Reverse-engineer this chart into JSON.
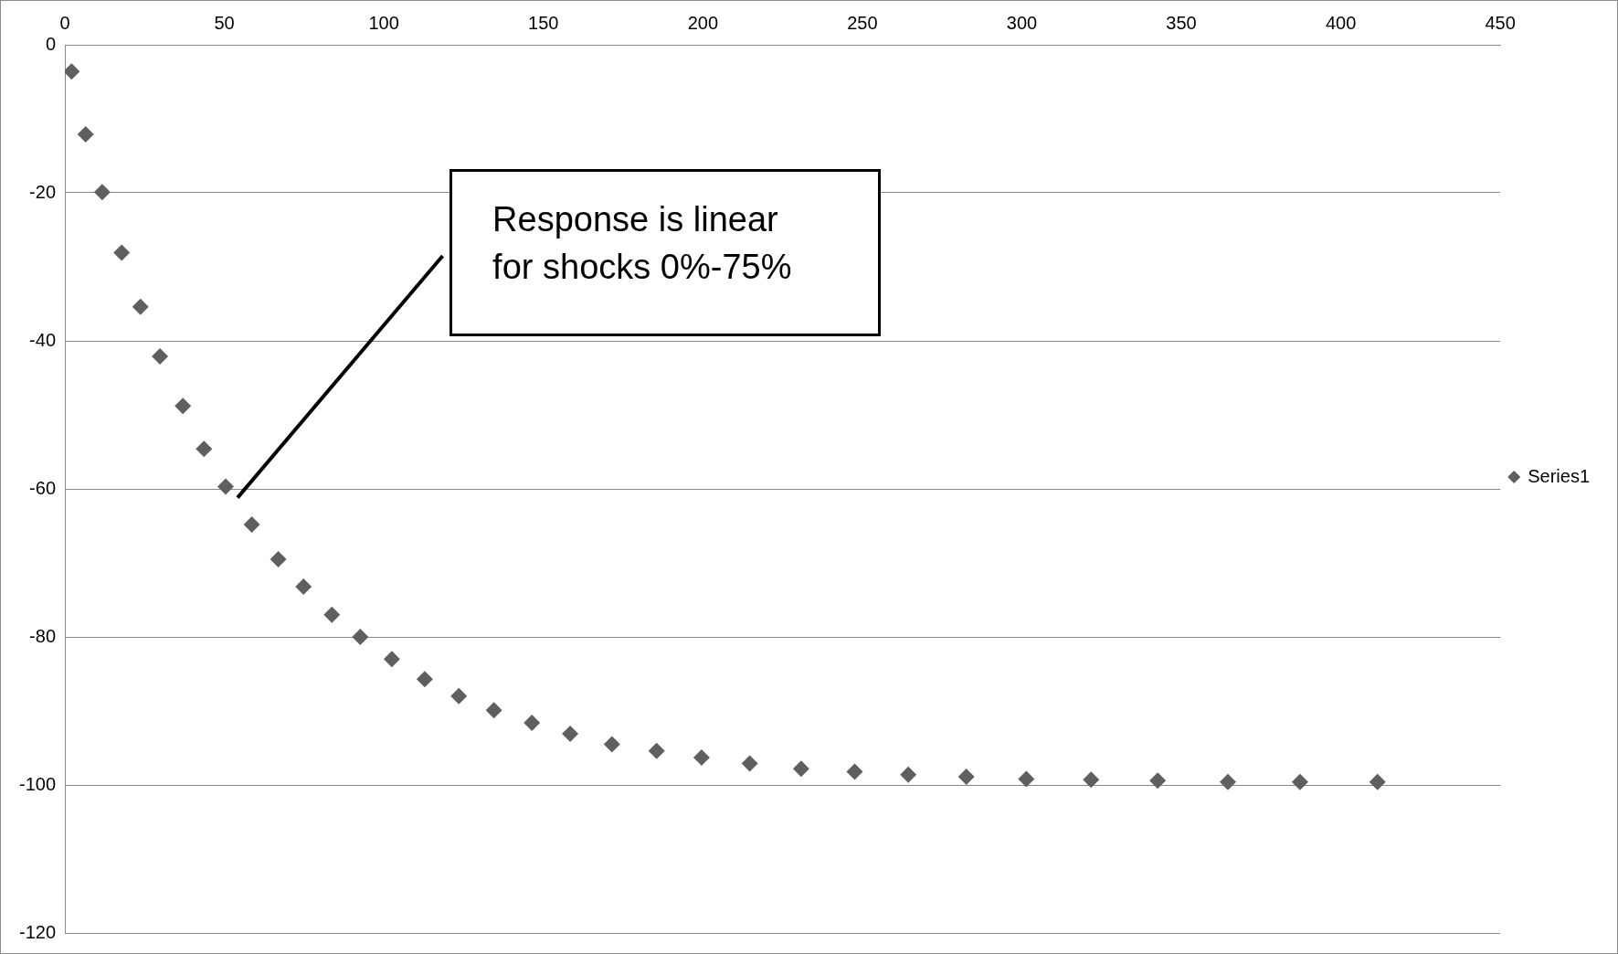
{
  "chart_data": {
    "type": "scatter",
    "x": [
      2.1,
      6.5,
      11.7,
      17.8,
      23.7,
      29.8,
      37.0,
      43.6,
      50.4,
      58.6,
      66.9,
      74.8,
      83.7,
      92.6,
      102.5,
      112.8,
      123.5,
      134.5,
      146.4,
      158.4,
      171.5,
      185.5,
      199.6,
      214.7,
      230.8,
      247.6,
      264.4,
      282.6,
      301.4,
      321.7,
      342.6,
      364.6,
      387.2,
      411.5
    ],
    "series": [
      {
        "name": "Series1",
        "color": "#5f5f5f",
        "values": [
          -3.6,
          -12.1,
          -19.9,
          -28.1,
          -35.4,
          -42.1,
          -48.8,
          -54.6,
          -59.7,
          -64.8,
          -69.5,
          -73.2,
          -77.0,
          -80.0,
          -83.0,
          -85.7,
          -88.0,
          -89.9,
          -91.6,
          -93.1,
          -94.5,
          -95.4,
          -96.3,
          -97.1,
          -97.8,
          -98.2,
          -98.6,
          -98.9,
          -99.2,
          -99.3,
          -99.4,
          -99.6,
          -99.6,
          -99.6
        ]
      }
    ],
    "xlim": [
      0,
      450
    ],
    "xticks": [
      0,
      50,
      100,
      150,
      200,
      250,
      300,
      350,
      400,
      450
    ],
    "ylim": [
      -120,
      0
    ],
    "yticks": [
      -120,
      -100,
      -80,
      -60,
      -40,
      -20,
      0
    ],
    "grid": "y",
    "legend": "right",
    "marker": "diamond",
    "annotations": [
      "Response is linear for shocks 0%-75%"
    ]
  }
}
